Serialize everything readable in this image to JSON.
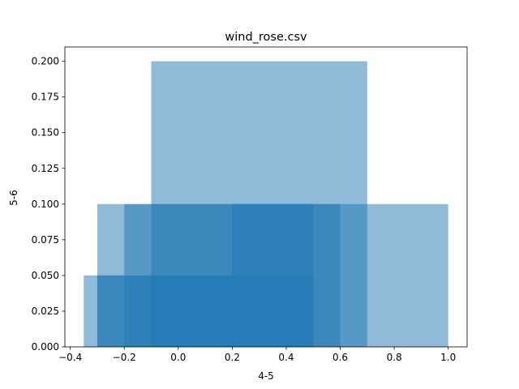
{
  "chart_data": {
    "type": "bar",
    "title": "wind_rose.csv",
    "xlabel": "4-5",
    "ylabel": "5-6",
    "xlim": [
      -0.42,
      1.07
    ],
    "ylim": [
      0,
      0.21
    ],
    "x_ticks": [
      -0.4,
      -0.2,
      0.0,
      0.2,
      0.4,
      0.6,
      0.8,
      1.0
    ],
    "x_tick_labels": [
      "−0.4",
      "−0.2",
      "0.0",
      "0.2",
      "0.4",
      "0.6",
      "0.8",
      "1.0"
    ],
    "y_ticks": [
      0.0,
      0.025,
      0.05,
      0.075,
      0.1,
      0.125,
      0.15,
      0.175,
      0.2
    ],
    "y_tick_labels": [
      "0.000",
      "0.025",
      "0.050",
      "0.075",
      "0.100",
      "0.125",
      "0.150",
      "0.175",
      "0.200"
    ],
    "grid": false,
    "bar_color": "#1f77b4",
    "bar_alpha": 0.5,
    "bars": [
      {
        "x0": -0.35,
        "x1": 0.5,
        "height": 0.05
      },
      {
        "x0": -0.3,
        "x1": 0.6,
        "height": 0.1
      },
      {
        "x0": -0.2,
        "x1": 0.5,
        "height": 0.1
      },
      {
        "x0": -0.1,
        "x1": 0.7,
        "height": 0.2
      },
      {
        "x0": 0.2,
        "x1": 1.0,
        "height": 0.1
      },
      {
        "x0": -0.3,
        "x1": 0.2,
        "height": 0.05
      }
    ]
  }
}
